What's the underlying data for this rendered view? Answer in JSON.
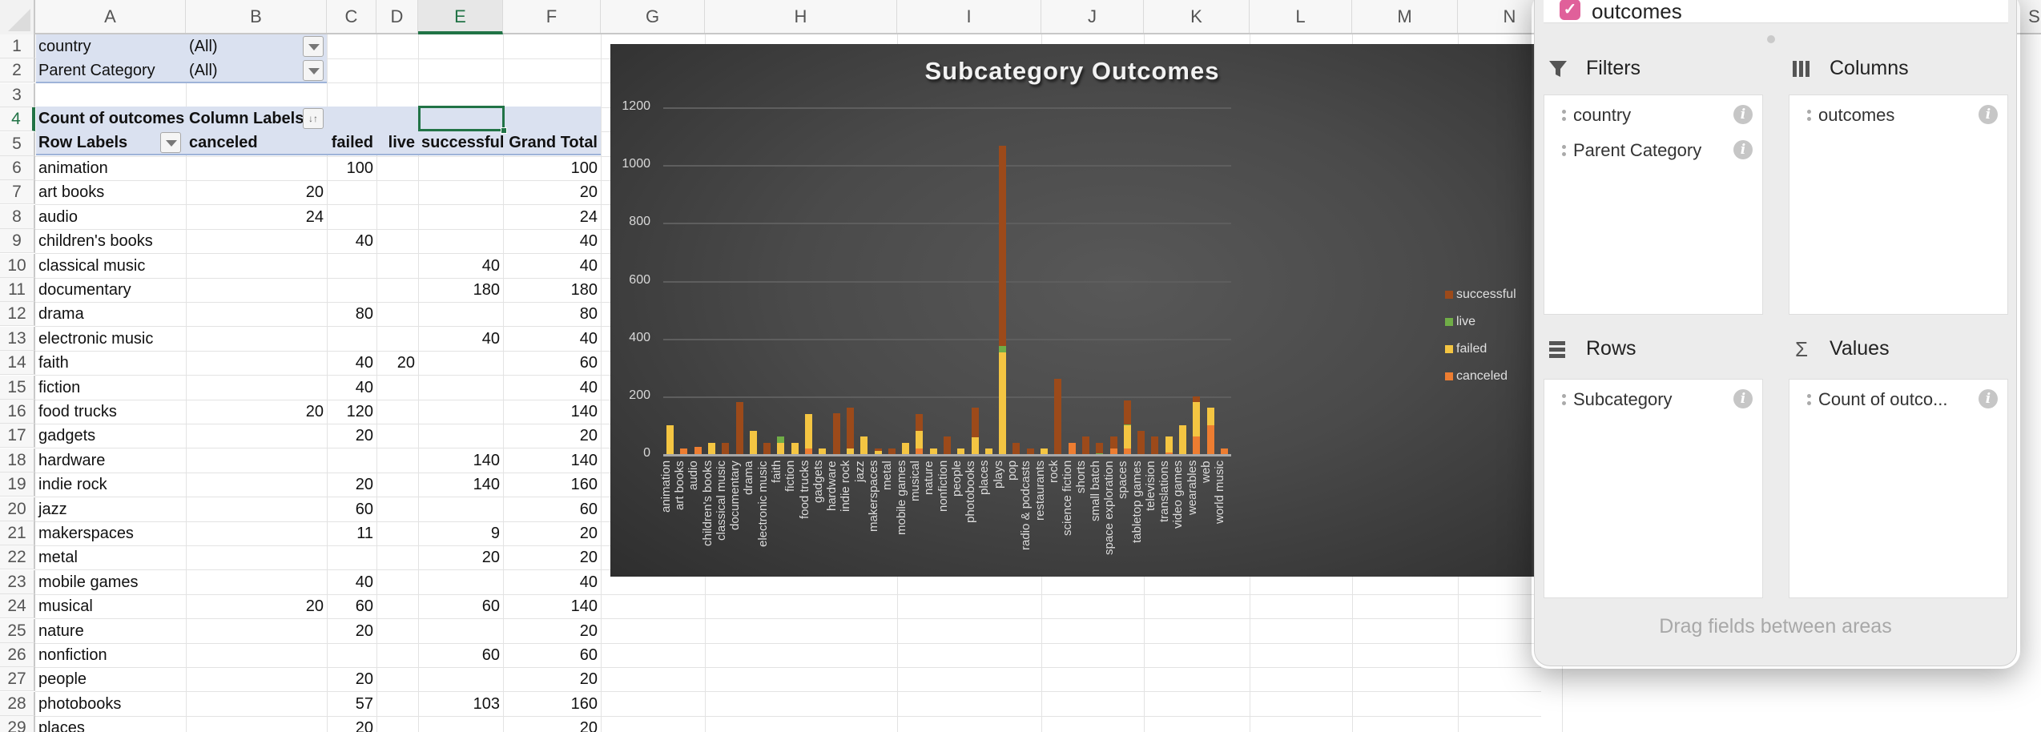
{
  "sheet": {
    "columns": [
      "A",
      "B",
      "C",
      "D",
      "E",
      "F",
      "G",
      "H",
      "I",
      "J",
      "K",
      "L",
      "M",
      "N",
      "S"
    ],
    "active_column": "E",
    "active_row": 4,
    "row_numbers": [
      1,
      2,
      3,
      4,
      5,
      6,
      7,
      8,
      9,
      10,
      11,
      12,
      13,
      14,
      15,
      16,
      17,
      18,
      19,
      20,
      21,
      22,
      23,
      24,
      25,
      26,
      27,
      28,
      29
    ]
  },
  "pivot": {
    "filters": [
      {
        "field": "country",
        "value": "(All)"
      },
      {
        "field": "Parent Category",
        "value": "(All)"
      }
    ],
    "values_label": "Count of outcomes",
    "column_labels": "Column Labels",
    "row_labels": "Row Labels",
    "column_headers": [
      "canceled",
      "failed",
      "live",
      "successful",
      "Grand Total"
    ],
    "rows": [
      {
        "label": "animation",
        "canceled": "",
        "failed": "100",
        "live": "",
        "successful": "",
        "total": "100"
      },
      {
        "label": "art books",
        "canceled": "20",
        "failed": "",
        "live": "",
        "successful": "",
        "total": "20"
      },
      {
        "label": "audio",
        "canceled": "24",
        "failed": "",
        "live": "",
        "successful": "",
        "total": "24"
      },
      {
        "label": "children's books",
        "canceled": "",
        "failed": "40",
        "live": "",
        "successful": "",
        "total": "40"
      },
      {
        "label": "classical music",
        "canceled": "",
        "failed": "",
        "live": "",
        "successful": "40",
        "total": "40"
      },
      {
        "label": "documentary",
        "canceled": "",
        "failed": "",
        "live": "",
        "successful": "180",
        "total": "180"
      },
      {
        "label": "drama",
        "canceled": "",
        "failed": "80",
        "live": "",
        "successful": "",
        "total": "80"
      },
      {
        "label": "electronic music",
        "canceled": "",
        "failed": "",
        "live": "",
        "successful": "40",
        "total": "40"
      },
      {
        "label": "faith",
        "canceled": "",
        "failed": "40",
        "live": "20",
        "successful": "",
        "total": "60"
      },
      {
        "label": "fiction",
        "canceled": "",
        "failed": "40",
        "live": "",
        "successful": "",
        "total": "40"
      },
      {
        "label": "food trucks",
        "canceled": "20",
        "failed": "120",
        "live": "",
        "successful": "",
        "total": "140"
      },
      {
        "label": "gadgets",
        "canceled": "",
        "failed": "20",
        "live": "",
        "successful": "",
        "total": "20"
      },
      {
        "label": "hardware",
        "canceled": "",
        "failed": "",
        "live": "",
        "successful": "140",
        "total": "140"
      },
      {
        "label": "indie rock",
        "canceled": "",
        "failed": "20",
        "live": "",
        "successful": "140",
        "total": "160"
      },
      {
        "label": "jazz",
        "canceled": "",
        "failed": "60",
        "live": "",
        "successful": "",
        "total": "60"
      },
      {
        "label": "makerspaces",
        "canceled": "",
        "failed": "11",
        "live": "",
        "successful": "9",
        "total": "20"
      },
      {
        "label": "metal",
        "canceled": "",
        "failed": "",
        "live": "",
        "successful": "20",
        "total": "20"
      },
      {
        "label": "mobile games",
        "canceled": "",
        "failed": "40",
        "live": "",
        "successful": "",
        "total": "40"
      },
      {
        "label": "musical",
        "canceled": "20",
        "failed": "60",
        "live": "",
        "successful": "60",
        "total": "140"
      },
      {
        "label": "nature",
        "canceled": "",
        "failed": "20",
        "live": "",
        "successful": "",
        "total": "20"
      },
      {
        "label": "nonfiction",
        "canceled": "",
        "failed": "",
        "live": "",
        "successful": "60",
        "total": "60"
      },
      {
        "label": "people",
        "canceled": "",
        "failed": "20",
        "live": "",
        "successful": "",
        "total": "20"
      },
      {
        "label": "photobooks",
        "canceled": "",
        "failed": "57",
        "live": "",
        "successful": "103",
        "total": "160"
      },
      {
        "label": "places",
        "canceled": "",
        "failed": "20",
        "live": "",
        "successful": "",
        "total": "20"
      }
    ]
  },
  "chart_data": {
    "type": "bar",
    "stacked": true,
    "title": "Subcategory Outcomes",
    "xlabel": "",
    "ylabel": "",
    "ylim": [
      0,
      1200
    ],
    "yticks": [
      0,
      200,
      400,
      600,
      800,
      1000,
      1200
    ],
    "grid": true,
    "legend_position": "right",
    "categories": [
      "animation",
      "art books",
      "audio",
      "children's books",
      "classical music",
      "documentary",
      "drama",
      "electronic music",
      "faith",
      "fiction",
      "food trucks",
      "gadgets",
      "hardware",
      "indie rock",
      "jazz",
      "makerspaces",
      "metal",
      "mobile games",
      "musical",
      "nature",
      "nonfiction",
      "people",
      "photobooks",
      "places",
      "plays",
      "pop",
      "radio & podcasts",
      "restaurants",
      "rock",
      "science fiction",
      "shorts",
      "small batch",
      "space exploration",
      "spaces",
      "tabletop games",
      "television",
      "translations",
      "video games",
      "wearables",
      "web",
      "world music"
    ],
    "series": [
      {
        "name": "canceled",
        "color": "#ed7d31",
        "values": [
          0,
          20,
          24,
          0,
          0,
          0,
          0,
          0,
          0,
          0,
          20,
          0,
          0,
          0,
          0,
          0,
          0,
          0,
          20,
          0,
          0,
          0,
          0,
          0,
          0,
          0,
          0,
          0,
          0,
          40,
          0,
          0,
          20,
          20,
          0,
          0,
          6,
          0,
          60,
          100,
          20
        ]
      },
      {
        "name": "failed",
        "color": "#f4c542",
        "values": [
          100,
          0,
          0,
          40,
          0,
          0,
          80,
          0,
          40,
          40,
          120,
          20,
          0,
          20,
          60,
          11,
          0,
          40,
          60,
          20,
          0,
          20,
          57,
          20,
          353,
          0,
          0,
          20,
          0,
          0,
          0,
          0,
          0,
          80,
          0,
          0,
          54,
          100,
          120,
          60,
          0
        ]
      },
      {
        "name": "live",
        "color": "#70ad47",
        "values": [
          0,
          0,
          0,
          0,
          0,
          0,
          0,
          0,
          20,
          0,
          0,
          0,
          0,
          0,
          0,
          0,
          0,
          0,
          0,
          0,
          0,
          0,
          0,
          0,
          20,
          0,
          0,
          0,
          0,
          0,
          0,
          4,
          0,
          4,
          0,
          0,
          0,
          0,
          0,
          0,
          0
        ]
      },
      {
        "name": "successful",
        "color": "#9c4a1a",
        "values": [
          0,
          0,
          0,
          0,
          40,
          180,
          0,
          40,
          0,
          0,
          0,
          0,
          140,
          140,
          0,
          9,
          20,
          0,
          60,
          0,
          60,
          0,
          103,
          0,
          694,
          40,
          20,
          0,
          260,
          0,
          60,
          36,
          40,
          82,
          80,
          60,
          0,
          0,
          20,
          0,
          0
        ]
      }
    ]
  },
  "pivot_panel": {
    "field_item": {
      "label": "outcomes",
      "checked": true
    },
    "areas": {
      "filters": {
        "title": "Filters",
        "icon": "filter-icon",
        "items": [
          "country",
          "Parent Category"
        ]
      },
      "columns": {
        "title": "Columns",
        "icon": "columns-icon",
        "items": [
          "outcomes"
        ]
      },
      "rows": {
        "title": "Rows",
        "icon": "rows-icon",
        "items": [
          "Subcategory"
        ]
      },
      "values": {
        "title": "Values",
        "icon": "sigma-icon",
        "items": [
          "Count of outco..."
        ]
      }
    },
    "hint": "Drag fields between areas",
    "info_glyph": "i",
    "check_glyph": "✓",
    "filter_glyph": "⏷",
    "columns_glyph": "⦀",
    "rows_glyph": "☰",
    "values_glyph": "Σ",
    "sort_glyph": "↓↑"
  },
  "colors": {
    "accent": "#217346",
    "pivot_band": "#dae1f0",
    "checkbox": "#e0609a"
  }
}
